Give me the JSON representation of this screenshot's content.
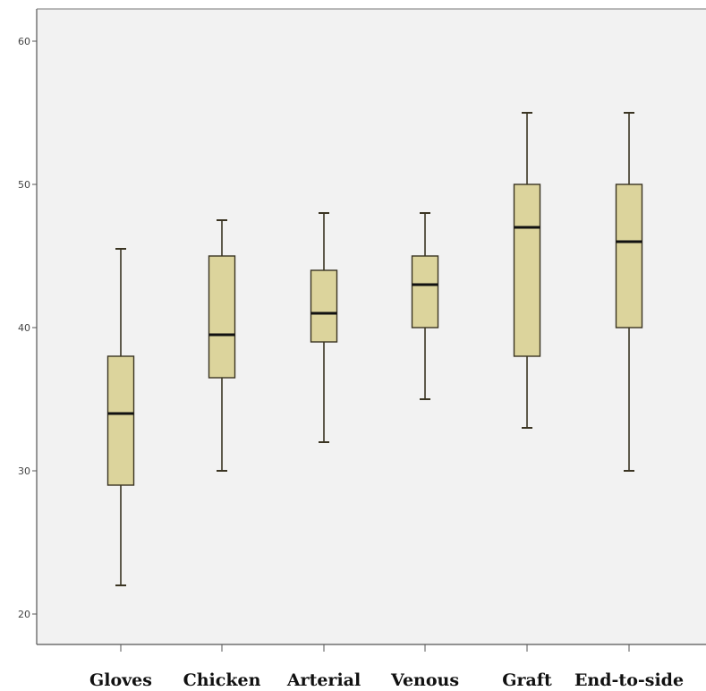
{
  "chart_data": {
    "type": "boxplot",
    "title": "",
    "xlabel": "",
    "ylabel": "",
    "ylim": [
      18,
      63
    ],
    "yticks": [
      20,
      30,
      40,
      50,
      60
    ],
    "ytick_labels": [
      "20",
      "30",
      "40",
      "50",
      "60"
    ],
    "grid": false,
    "box_color": "#dcd49c",
    "box_stroke": "#3a3422",
    "plot_background": "#f2f2f2",
    "categories": [
      "Gloves",
      "Chicken",
      "Arterial",
      "Venous",
      "Graft",
      "End-to-side"
    ],
    "boxes": [
      {
        "category": "Gloves",
        "min": 22,
        "q1": 29,
        "median": 34,
        "q3": 38,
        "max": 45.5
      },
      {
        "category": "Chicken",
        "min": 30,
        "q1": 36.5,
        "median": 39.5,
        "q3": 45,
        "max": 47.5
      },
      {
        "category": "Arterial",
        "min": 32,
        "q1": 39,
        "median": 41,
        "q3": 44,
        "max": 48
      },
      {
        "category": "Venous",
        "min": 35,
        "q1": 40,
        "median": 43,
        "q3": 45,
        "max": 48
      },
      {
        "category": "Graft",
        "min": 33,
        "q1": 38,
        "median": 47,
        "q3": 50,
        "max": 55
      },
      {
        "category": "End-to-side",
        "min": 30,
        "q1": 40,
        "median": 46,
        "q3": 50,
        "max": 55
      }
    ]
  }
}
